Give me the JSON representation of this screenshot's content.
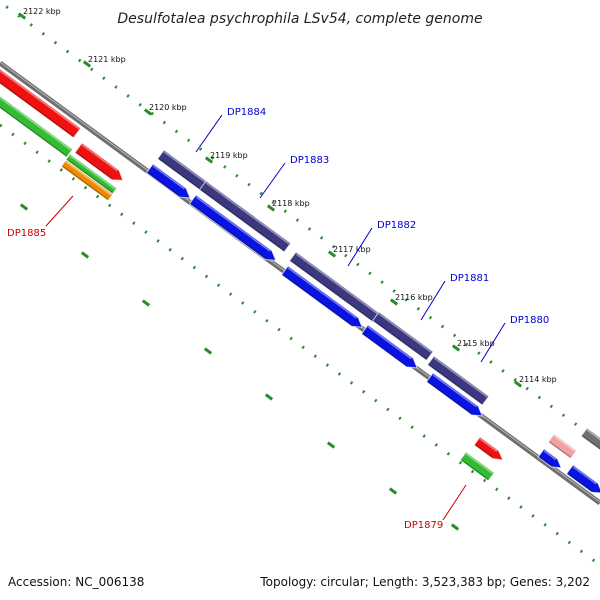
{
  "title": "Desulfotalea psychrophila LSv54, complete genome",
  "footer": {
    "accession": "Accession: NC_006138",
    "stats": "Topology: circular; Length: 3,523,383 bp; Genes: 3,202"
  },
  "colors": {
    "backbone": "#6e6e6e",
    "ruler": "#2d8a2d",
    "label_blue": "#0000cc",
    "label_red": "#cc0000",
    "cds_blue": "#0a14e0",
    "cds_purple": "#3c3880",
    "red": "#ee1111",
    "green": "#33bb33",
    "orange": "#ee8800",
    "pink": "#f0a0a0",
    "gray": "#707070"
  },
  "ticks": [
    {
      "label": "2122 kbp"
    },
    {
      "label": "2121 kbp"
    },
    {
      "label": "2120 kbp"
    },
    {
      "label": "2119 kbp"
    },
    {
      "label": "2118 kbp"
    },
    {
      "label": "2117 kbp"
    },
    {
      "label": "2116 kbp"
    },
    {
      "label": "2115 kbp"
    },
    {
      "label": "2114 kbp"
    }
  ],
  "gene_labels": [
    {
      "name": "DP1885",
      "color": "red"
    },
    {
      "name": "DP1884",
      "color": "blue"
    },
    {
      "name": "DP1883",
      "color": "blue"
    },
    {
      "name": "DP1882",
      "color": "blue"
    },
    {
      "name": "DP1881",
      "color": "blue"
    },
    {
      "name": "DP1880",
      "color": "blue"
    },
    {
      "name": "DP1879",
      "color": "red"
    }
  ]
}
